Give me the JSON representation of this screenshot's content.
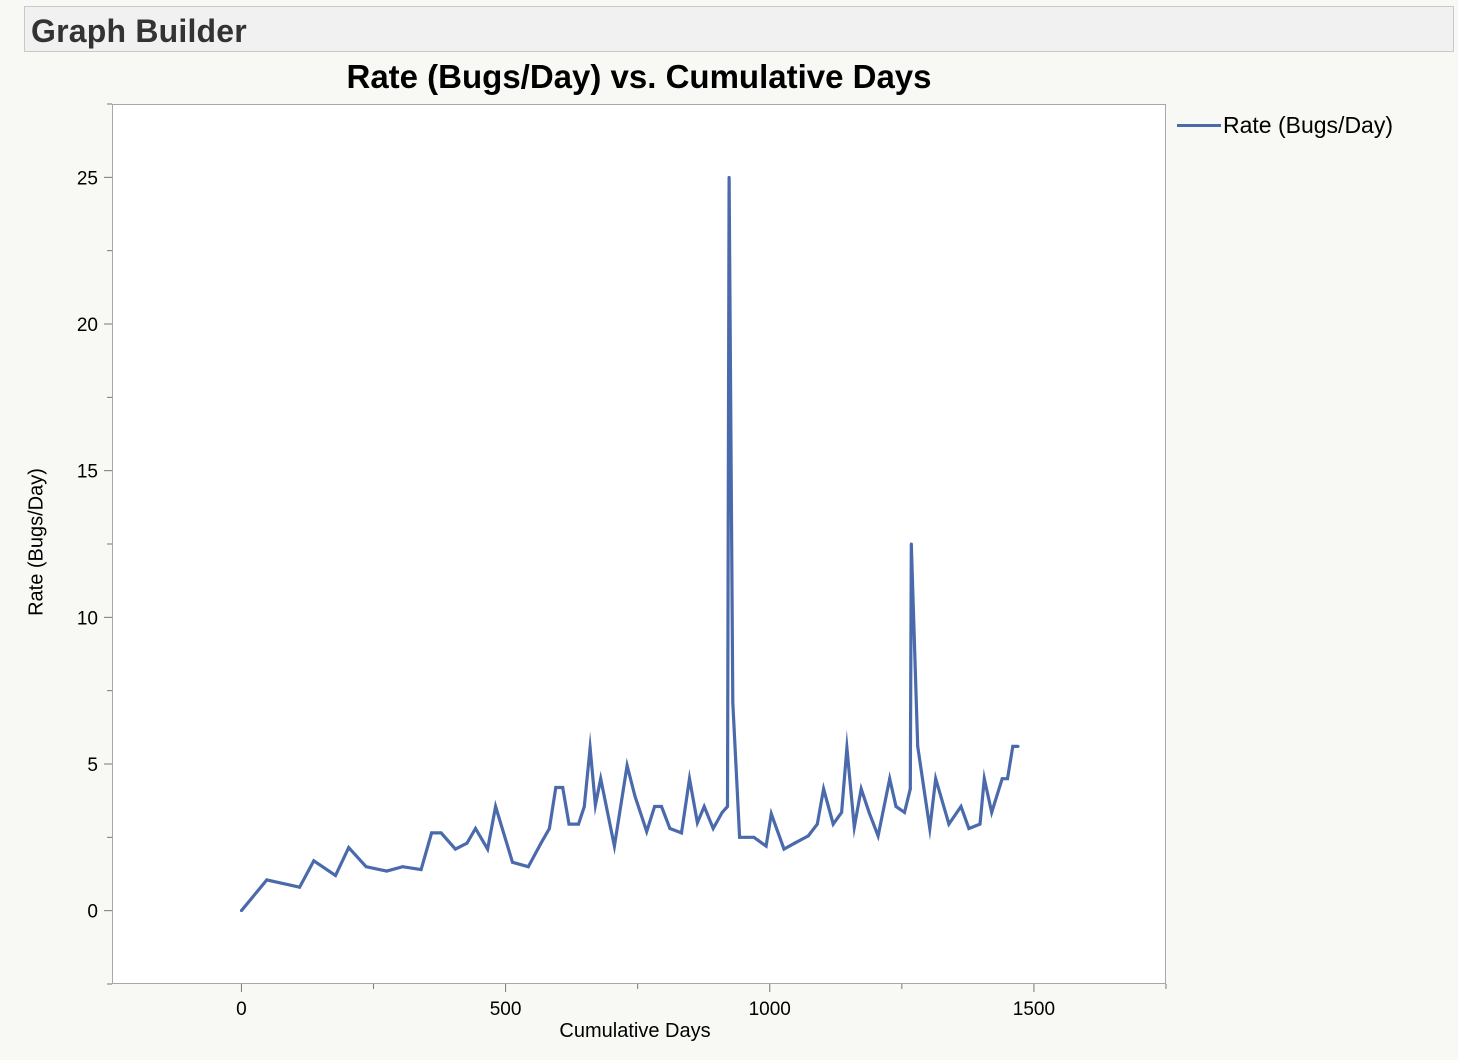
{
  "window": {
    "title": "Graph Builder"
  },
  "chart_data": {
    "type": "line",
    "title": "Rate (Bugs/Day) vs. Cumulative Days",
    "xlabel": "Cumulative Days",
    "ylabel": "Rate (Bugs/Day)",
    "xlim": [
      -245,
      1750
    ],
    "ylim": [
      -2.5,
      27.5
    ],
    "xticks": [
      0,
      500,
      1000,
      1500
    ],
    "yticks": [
      0,
      5,
      10,
      15,
      20,
      25
    ],
    "grid": false,
    "legend_position": "right",
    "series": [
      {
        "name": "Rate (Bugs/Day)",
        "color": "#4a6aab",
        "x": [
          0,
          48,
          110,
          137,
          178,
          203,
          236,
          275,
          305,
          340,
          360,
          378,
          405,
          427,
          443,
          466,
          481,
          513,
          543,
          567,
          583,
          595,
          608,
          620,
          638,
          649,
          660,
          670,
          680,
          706,
          730,
          745,
          767,
          782,
          795,
          811,
          833,
          848,
          863,
          876,
          893,
          910,
          920,
          923,
          930,
          943,
          954,
          970,
          993,
          1003,
          1027,
          1047,
          1073,
          1090,
          1102,
          1120,
          1136,
          1146,
          1160,
          1173,
          1188,
          1205,
          1227,
          1239,
          1255,
          1266,
          1268,
          1280,
          1303,
          1314,
          1339,
          1362,
          1377,
          1398,
          1406,
          1420,
          1440,
          1450,
          1460,
          1470
        ],
        "y": [
          0,
          1.05,
          0.8,
          1.7,
          1.2,
          2.15,
          1.5,
          1.35,
          1.5,
          1.4,
          2.65,
          2.65,
          2.1,
          2.3,
          2.8,
          2.1,
          3.55,
          1.65,
          1.5,
          2.3,
          2.8,
          4.2,
          4.2,
          2.95,
          2.95,
          3.55,
          5.55,
          3.6,
          4.5,
          2.2,
          4.95,
          3.9,
          2.7,
          3.55,
          3.55,
          2.8,
          2.65,
          4.5,
          3.0,
          3.55,
          2.8,
          3.35,
          3.55,
          25.0,
          7.1,
          2.5,
          2.5,
          2.5,
          2.2,
          3.3,
          2.1,
          2.3,
          2.55,
          2.95,
          4.15,
          2.95,
          3.35,
          5.55,
          2.85,
          4.15,
          3.35,
          2.55,
          4.5,
          3.55,
          3.35,
          4.15,
          12.5,
          5.6,
          2.8,
          4.5,
          2.95,
          3.55,
          2.8,
          2.95,
          4.5,
          3.35,
          4.5,
          4.5,
          5.6,
          5.6
        ]
      }
    ]
  }
}
